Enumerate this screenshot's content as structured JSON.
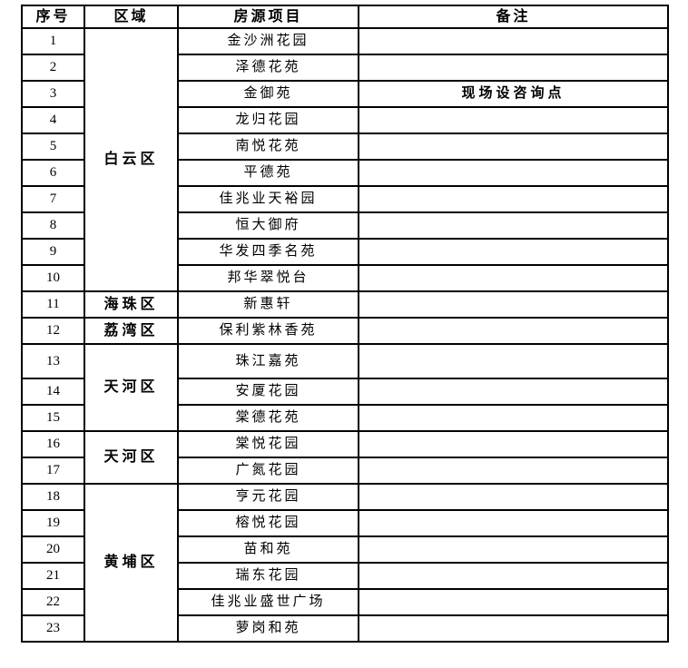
{
  "table": {
    "headers": [
      "序号",
      "区域",
      "房源项目",
      "备注"
    ],
    "groups": [
      {
        "region": "白云区",
        "rows": [
          {
            "no": "1",
            "project": "金沙洲花园",
            "note": ""
          },
          {
            "no": "2",
            "project": "泽德花苑",
            "note": ""
          },
          {
            "no": "3",
            "project": "金御苑",
            "note": "现场设咨询点"
          },
          {
            "no": "4",
            "project": "龙归花园",
            "note": ""
          },
          {
            "no": "5",
            "project": "南悦花苑",
            "note": ""
          },
          {
            "no": "6",
            "project": "平德苑",
            "note": ""
          },
          {
            "no": "7",
            "project": "佳兆业天裕园",
            "note": ""
          },
          {
            "no": "8",
            "project": "恒大御府",
            "note": ""
          },
          {
            "no": "9",
            "project": "华发四季名苑",
            "note": ""
          },
          {
            "no": "10",
            "project": "邦华翠悦台",
            "note": ""
          }
        ]
      },
      {
        "region": "海珠区",
        "rows": [
          {
            "no": "11",
            "project": "新惠轩",
            "note": ""
          }
        ]
      },
      {
        "region": "荔湾区",
        "rows": [
          {
            "no": "12",
            "project": "保利紫林香苑",
            "note": ""
          }
        ]
      },
      {
        "region": "天河区",
        "rows": [
          {
            "no": "13",
            "project": "珠江嘉苑",
            "note": ""
          },
          {
            "no": "14",
            "project": "安厦花园",
            "note": ""
          },
          {
            "no": "15",
            "project": "棠德花苑",
            "note": ""
          }
        ]
      },
      {
        "region": "天河区",
        "rows": [
          {
            "no": "16",
            "project": "棠悦花园",
            "note": ""
          },
          {
            "no": "17",
            "project": "广氮花园",
            "note": ""
          }
        ]
      },
      {
        "region": "黄埔区",
        "rows": [
          {
            "no": "18",
            "project": "亨元花园",
            "note": ""
          },
          {
            "no": "19",
            "project": "榕悦花园",
            "note": ""
          },
          {
            "no": "20",
            "project": "苗和苑",
            "note": ""
          },
          {
            "no": "21",
            "project": "瑞东花园",
            "note": ""
          },
          {
            "no": "22",
            "project": "佳兆业盛世广场",
            "note": ""
          },
          {
            "no": "23",
            "project": "萝岗和苑",
            "note": ""
          }
        ]
      }
    ]
  }
}
